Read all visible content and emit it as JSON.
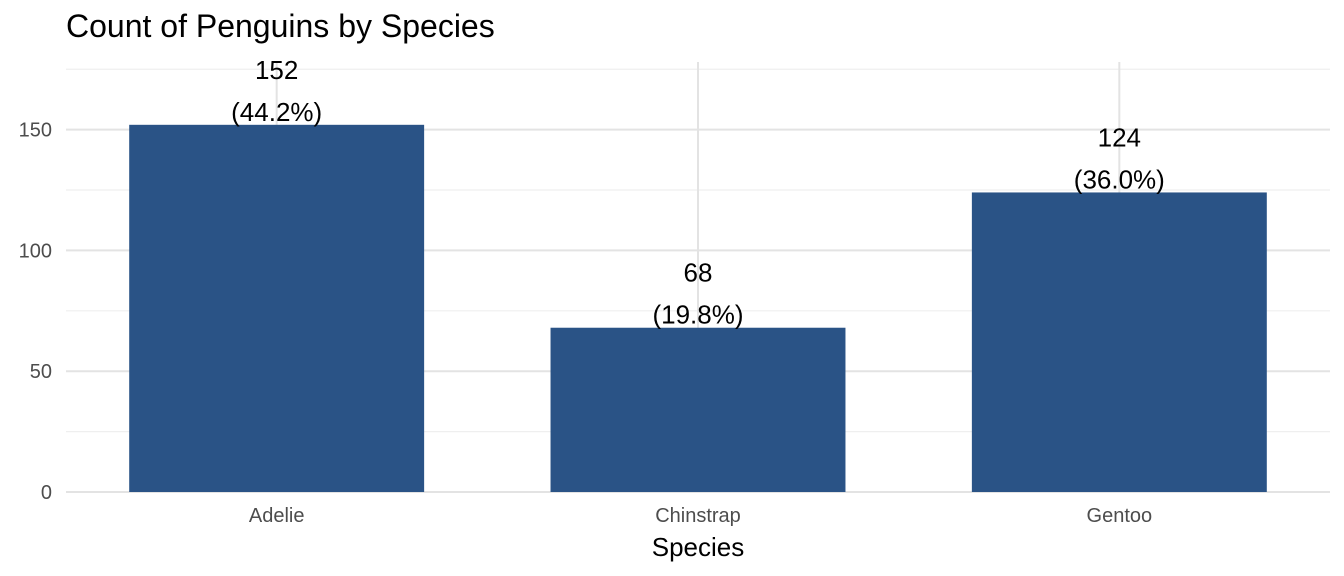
{
  "chart_data": {
    "type": "bar",
    "title": "Count of Penguins by Species",
    "xlabel": "Species",
    "ylabel": "",
    "categories": [
      "Adelie",
      "Chinstrap",
      "Gentoo"
    ],
    "values": [
      152,
      68,
      124
    ],
    "data_labels": [
      [
        "152",
        "(44.2%)"
      ],
      [
        "68",
        "(19.8%)"
      ],
      [
        "124",
        "(36.0%)"
      ]
    ],
    "ylim": [
      0,
      178
    ],
    "yticks": [
      0,
      50,
      100,
      150
    ],
    "ytick_labels": [
      "0",
      "50",
      "100",
      "150"
    ],
    "grid": true,
    "legend": "none",
    "bar_color": "#2a5386"
  }
}
